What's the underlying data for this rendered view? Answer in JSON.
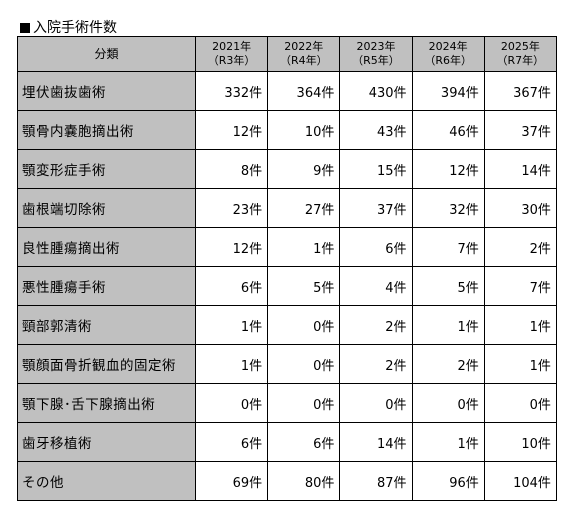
{
  "title": "入院手術件数",
  "header": {
    "category": "分類",
    "years": [
      {
        "year": "2021年",
        "era": "（R3年）"
      },
      {
        "year": "2022年",
        "era": "（R4年）"
      },
      {
        "year": "2023年",
        "era": "（R5年）"
      },
      {
        "year": "2024年",
        "era": "（R6年）"
      },
      {
        "year": "2025年",
        "era": "（R7年）"
      }
    ]
  },
  "rows": [
    {
      "name": "埋伏歯抜歯術",
      "values": [
        "332件",
        "364件",
        "430件",
        "394件",
        "367件"
      ]
    },
    {
      "name": "顎骨内嚢胞摘出術",
      "values": [
        "12件",
        "10件",
        "43件",
        "46件",
        "37件"
      ]
    },
    {
      "name": "顎変形症手術",
      "values": [
        "8件",
        "9件",
        "15件",
        "12件",
        "14件"
      ]
    },
    {
      "name": "歯根端切除術",
      "values": [
        "23件",
        "27件",
        "37件",
        "32件",
        "30件"
      ]
    },
    {
      "name": "良性腫瘍摘出術",
      "values": [
        "12件",
        "1件",
        "6件",
        "7件",
        "2件"
      ]
    },
    {
      "name": "悪性腫瘍手術",
      "values": [
        "6件",
        "5件",
        "4件",
        "5件",
        "7件"
      ]
    },
    {
      "name": "頸部郭清術",
      "values": [
        "1件",
        "0件",
        "2件",
        "1件",
        "1件"
      ]
    },
    {
      "name": "顎顔面骨折観血的固定術",
      "values": [
        "1件",
        "0件",
        "2件",
        "2件",
        "1件"
      ]
    },
    {
      "name": "顎下腺･舌下腺摘出術",
      "values": [
        "0件",
        "0件",
        "0件",
        "0件",
        "0件"
      ]
    },
    {
      "name": "歯牙移植術",
      "values": [
        "6件",
        "6件",
        "14件",
        "1件",
        "10件"
      ]
    },
    {
      "name": "その他",
      "values": [
        "69件",
        "80件",
        "87件",
        "96件",
        "104件"
      ]
    }
  ]
}
